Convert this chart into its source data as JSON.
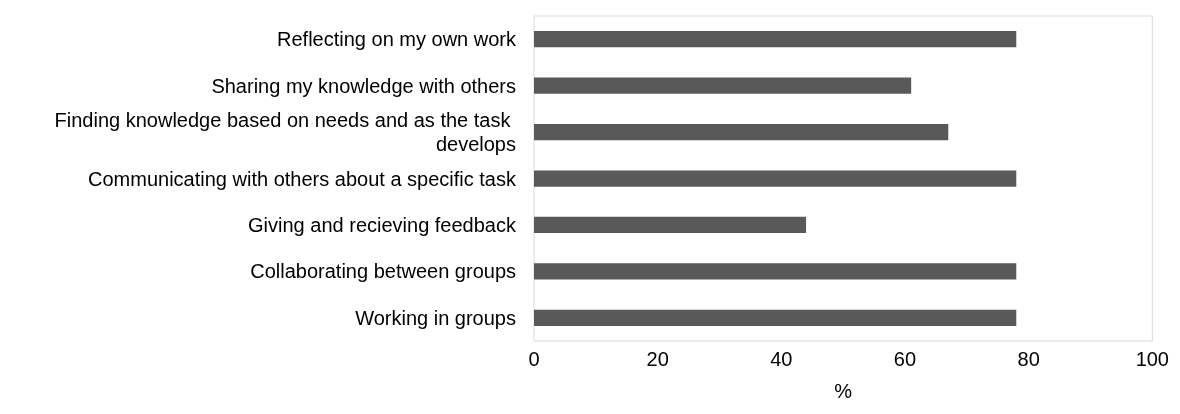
{
  "chart_data": {
    "type": "bar",
    "orientation": "horizontal",
    "categories": [
      "Reflecting on my own work",
      "Sharing my knowledge with others",
      "Finding knowledge based on needs and as the task develops",
      "Communicating with others about a specific task",
      "Giving and recieving feedback",
      "Collaborating between groups",
      "Working in groups"
    ],
    "values": [
      78,
      61,
      67,
      78,
      44,
      78,
      78
    ],
    "color": "#595959",
    "xlabel": "%",
    "xlim": [
      0,
      100
    ],
    "xticks": [
      0,
      20,
      40,
      60,
      80,
      100
    ],
    "grid": false
  }
}
